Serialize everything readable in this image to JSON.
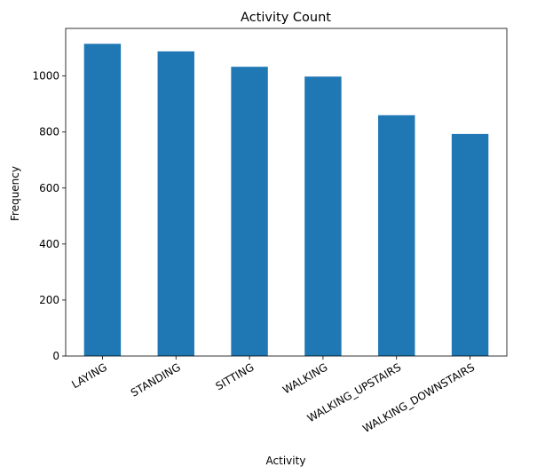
{
  "chart_data": {
    "type": "bar",
    "title": "Activity Count",
    "xlabel": "Activity",
    "ylabel": "Frequency",
    "categories": [
      "LAYING",
      "STANDING",
      "SITTING",
      "WALKING",
      "WALKING_UPSTAIRS",
      "WALKING_DOWNSTAIRS"
    ],
    "values": [
      1115,
      1088,
      1033,
      998,
      860,
      793
    ],
    "yticks": [
      0,
      200,
      400,
      600,
      800,
      1000
    ],
    "ylim": [
      0,
      1170
    ],
    "grid": false,
    "legend": "none",
    "bar_color": "#1f77b4"
  }
}
